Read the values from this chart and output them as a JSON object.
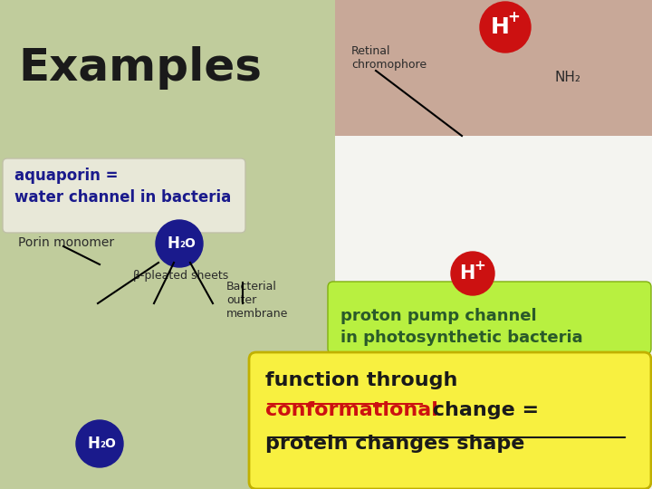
{
  "title": "Examples",
  "title_color": "#1a1a1a",
  "title_fontsize": 36,
  "hplus_color": "#cc1111",
  "retinal_label": "Retinal\nchromophore",
  "nh2_label": "NH₂",
  "aquaporin_label": "aquaporin =\nwater channel in bacteria",
  "aquaporin_bg": "#e8e8d8",
  "aquaporin_text_color": "#1a1a8c",
  "porin_label": "Porin monomer",
  "h2o_color": "#1a1a8c",
  "beta_label": "β-pleated sheets",
  "bacterial_label": "Bacterial\nouter\nmembrane",
  "proton_pump_label": "proton pump channel\nin photosynthetic bacteria",
  "proton_pump_bg": "#b8f040",
  "proton_pump_text_color": "#2a5a2a",
  "function_label1": "function through",
  "function_label2": "conformational",
  "function_label3": " change =",
  "function_label4": "protein changes shape",
  "function_bg": "#f8f040",
  "function_text_color": "#1a1a1a",
  "function_red": "#cc1111",
  "bg_left": "#c0cc9c",
  "bg_top_right": "#c8a898",
  "bg_white": "#f4f4f0"
}
